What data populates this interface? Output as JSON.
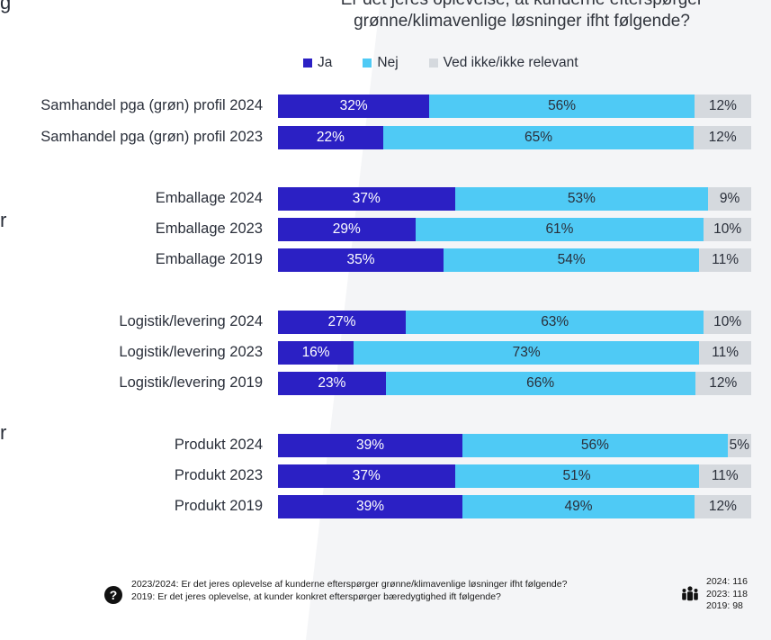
{
  "chart_data": {
    "type": "bar",
    "orientation": "horizontal",
    "stacked": true,
    "title": "Er det jeres oplevelse, at kunderne efterspørger grønne/klimavenlige løsninger ifht følgende?",
    "title_lines": [
      "Er det jeres oplevelse, at kunderne efterspørger",
      "grønne/klimavenlige løsninger ifht følgende?"
    ],
    "categories": [
      "Samhandel pga (grøn) profil 2024",
      "Samhandel pga (grøn) profil 2023",
      "Emballage 2024",
      "Emballage 2023",
      "Emballage 2019",
      "Logistik/levering 2024",
      "Logistik/levering 2023",
      "Logistik/levering 2019",
      "Produkt 2024",
      "Produkt 2023",
      "Produkt 2019"
    ],
    "series": [
      {
        "name": "Ja",
        "color": "#2b20c4",
        "values": [
          32,
          22,
          37,
          29,
          35,
          27,
          16,
          23,
          39,
          37,
          39
        ]
      },
      {
        "name": "Nej",
        "color": "#4fcaf5",
        "values": [
          56,
          65,
          53,
          61,
          54,
          63,
          73,
          66,
          56,
          51,
          49
        ]
      },
      {
        "name": "Ved ikke/ikke relevant",
        "color": "#d5d9de",
        "values": [
          12,
          12,
          9,
          10,
          11,
          10,
          11,
          12,
          5,
          11,
          12
        ]
      }
    ],
    "unit": "%",
    "legend_position": "top",
    "grid": false
  },
  "footer": {
    "question_2023_2024": "2023/2024: Er det jeres oplevelse af kunderne efterspørger grønne/klimavenlige løsninger ifht følgende?",
    "question_2019": "2019: Er det jeres oplevelse, at kunder konkret efterspørger bæredygtighed ift følgende?",
    "help_icon": "question-icon",
    "help_glyph": "?",
    "n_icon": "people-icon",
    "n_lines": [
      "2024: 116",
      "2023: 118",
      "2019: 98"
    ]
  },
  "edge_glyphs": [
    "g",
    "r",
    "r"
  ]
}
